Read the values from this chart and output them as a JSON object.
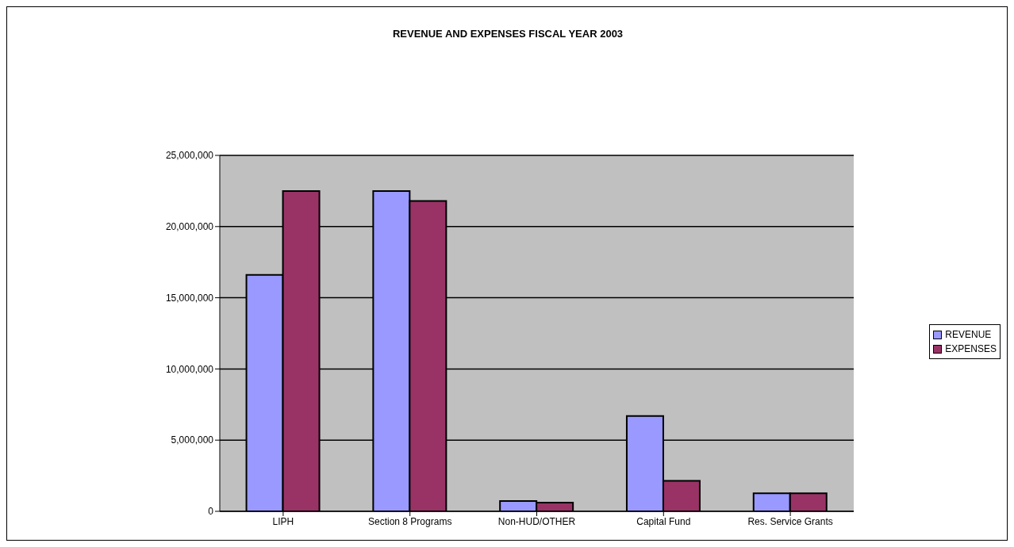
{
  "chart_data": {
    "type": "bar",
    "title": "REVENUE AND EXPENSES FISCAL YEAR 2003",
    "categories": [
      "LIPH",
      "Section 8 Programs",
      "Non-HUD/OTHER",
      "Capital Fund",
      "Res. Service Grants"
    ],
    "series": [
      {
        "name": "REVENUE",
        "color": "#9999ff",
        "values": [
          16600000,
          22500000,
          720000,
          6700000,
          1270000
        ]
      },
      {
        "name": "EXPENSES",
        "color": "#993366",
        "values": [
          22500000,
          21800000,
          610000,
          2140000,
          1270000
        ]
      }
    ],
    "ylim": [
      0,
      25000000
    ],
    "yticks": [
      {
        "value": 0,
        "label": "0"
      },
      {
        "value": 5000000,
        "label": "5,000,000"
      },
      {
        "value": 10000000,
        "label": "10,000,000"
      },
      {
        "value": 15000000,
        "label": "15,000,000"
      },
      {
        "value": 20000000,
        "label": "20,000,000"
      },
      {
        "value": 25000000,
        "label": "25,000,000"
      }
    ],
    "grid": "y",
    "legend": "right"
  }
}
